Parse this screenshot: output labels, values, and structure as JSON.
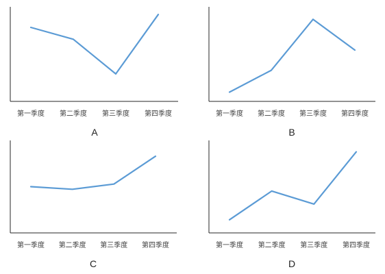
{
  "colors": {
    "line": "#5B9BD5",
    "axis": "#262626",
    "text": "#404040"
  },
  "chart_data": [
    {
      "type": "line",
      "panel_label": "A",
      "categories": [
        "第一季度",
        "第二季度",
        "第三季度",
        "第四季度"
      ],
      "values": [
        72,
        60,
        25,
        85
      ],
      "ylim": [
        0,
        90
      ],
      "grid": false,
      "legend": "none"
    },
    {
      "type": "line",
      "panel_label": "B",
      "categories": [
        "第一季度",
        "第二季度",
        "第三季度",
        "第四季度"
      ],
      "values": [
        8,
        35,
        98,
        60
      ],
      "ylim": [
        0,
        110
      ],
      "grid": false,
      "legend": "none"
    },
    {
      "type": "line",
      "panel_label": "C",
      "categories": [
        "第一季度",
        "第二季度",
        "第三季度",
        "第四季度"
      ],
      "values": [
        50,
        47,
        53,
        85
      ],
      "ylim": [
        0,
        100
      ],
      "grid": false,
      "legend": "none"
    },
    {
      "type": "line",
      "panel_label": "D",
      "categories": [
        "第一季度",
        "第二季度",
        "第三季度",
        "第四季度"
      ],
      "values": [
        12,
        45,
        30,
        90
      ],
      "ylim": [
        0,
        100
      ],
      "grid": false,
      "legend": "none"
    }
  ]
}
